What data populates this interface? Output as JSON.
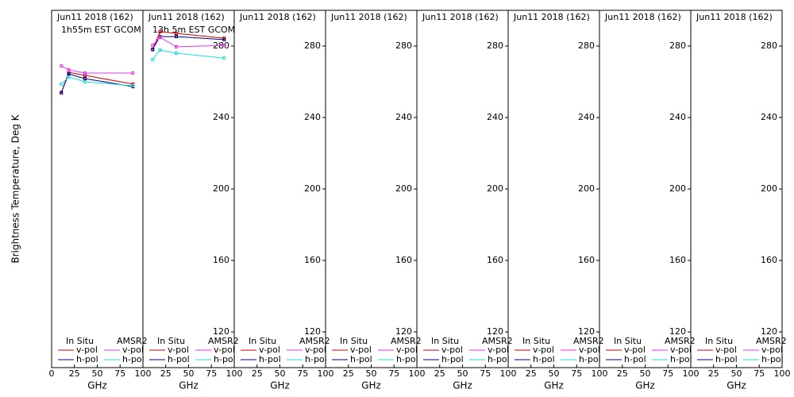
{
  "chart_data": [
    {
      "type": "line",
      "title": "Jun11 2018 (162)",
      "subtitle": "1h55m EST GCOM",
      "ylabel": "Brightness Temperature, Deg K",
      "xlabel": "GHz",
      "x": [
        10.65,
        18.7,
        36.5,
        89
      ],
      "xlim": [
        0,
        100
      ],
      "ylim": [
        100,
        300
      ],
      "xticks": [
        0,
        25,
        50,
        75,
        100
      ],
      "series": [
        {
          "group": "In Situ",
          "name": "v-pol",
          "color": "#cc0000",
          "values": [
            253.8,
            265.3,
            263.6,
            258.7
          ]
        },
        {
          "group": "In Situ",
          "name": "h-pol",
          "color": "#000080",
          "values": [
            254,
            264.4,
            261.8,
            257.3
          ]
        },
        {
          "group": "AMSR2",
          "name": "v-pol",
          "color": "#ee33ee",
          "values": [
            268.9,
            266.7,
            264.9,
            264.9
          ]
        },
        {
          "group": "AMSR2",
          "name": "h-pol",
          "color": "#22dddd",
          "values": [
            258.7,
            262.7,
            260,
            257.8
          ]
        }
      ]
    },
    {
      "type": "line",
      "title": "Jun11 2018 (162)",
      "subtitle": "13h 5m EST GCOM",
      "xlabel": "GHz",
      "x": [
        10.65,
        18.7,
        36.5,
        89
      ],
      "xlim": [
        0,
        100
      ],
      "ylim": [
        100,
        300
      ],
      "xticks": [
        25,
        50,
        75,
        100
      ],
      "yticks": [
        120,
        160,
        200,
        240,
        280
      ],
      "series": [
        {
          "group": "In Situ",
          "name": "v-pol",
          "color": "#cc0000",
          "values": [
            278,
            288,
            287.1,
            284.4
          ]
        },
        {
          "group": "In Situ",
          "name": "h-pol",
          "color": "#000080",
          "values": [
            278.2,
            285.3,
            285.3,
            283.6
          ]
        },
        {
          "group": "AMSR2",
          "name": "v-pol",
          "color": "#ee33ee",
          "values": [
            280.4,
            284.9,
            279.6,
            280.4
          ]
        },
        {
          "group": "AMSR2",
          "name": "h-pol",
          "color": "#22dddd",
          "values": [
            272.4,
            277.8,
            276,
            273.3
          ]
        }
      ]
    },
    {
      "type": "line",
      "title": "Jun11 2018 (162)",
      "xlabel": "GHz",
      "x": [],
      "xlim": [
        0,
        100
      ],
      "ylim": [
        100,
        300
      ],
      "xticks": [
        25,
        50,
        75,
        100
      ],
      "yticks": [
        120,
        160,
        200,
        240,
        280
      ],
      "series": [
        {
          "group": "In Situ",
          "name": "v-pol",
          "color": "#cc0000",
          "values": []
        },
        {
          "group": "In Situ",
          "name": "h-pol",
          "color": "#000080",
          "values": []
        },
        {
          "group": "AMSR2",
          "name": "v-pol",
          "color": "#ee33ee",
          "values": []
        },
        {
          "group": "AMSR2",
          "name": "h-pol",
          "color": "#22dddd",
          "values": []
        }
      ]
    },
    {
      "type": "line",
      "title": "Jun11 2018 (162)",
      "xlabel": "GHz",
      "x": [],
      "xlim": [
        0,
        100
      ],
      "ylim": [
        100,
        300
      ],
      "xticks": [
        25,
        50,
        75,
        100
      ],
      "yticks": [
        120,
        160,
        200,
        240,
        280
      ],
      "series": [
        {
          "group": "In Situ",
          "name": "v-pol",
          "color": "#cc0000",
          "values": []
        },
        {
          "group": "In Situ",
          "name": "h-pol",
          "color": "#000080",
          "values": []
        },
        {
          "group": "AMSR2",
          "name": "v-pol",
          "color": "#ee33ee",
          "values": []
        },
        {
          "group": "AMSR2",
          "name": "h-pol",
          "color": "#22dddd",
          "values": []
        }
      ]
    },
    {
      "type": "line",
      "title": "Jun11 2018 (162)",
      "xlabel": "GHz",
      "x": [],
      "xlim": [
        0,
        100
      ],
      "ylim": [
        100,
        300
      ],
      "xticks": [
        25,
        50,
        75,
        100
      ],
      "yticks": [
        120,
        160,
        200,
        240,
        280
      ],
      "series": [
        {
          "group": "In Situ",
          "name": "v-pol",
          "color": "#cc0000",
          "values": []
        },
        {
          "group": "In Situ",
          "name": "h-pol",
          "color": "#000080",
          "values": []
        },
        {
          "group": "AMSR2",
          "name": "v-pol",
          "color": "#ee33ee",
          "values": []
        },
        {
          "group": "AMSR2",
          "name": "h-pol",
          "color": "#22dddd",
          "values": []
        }
      ]
    },
    {
      "type": "line",
      "title": "Jun11 2018 (162)",
      "xlabel": "GHz",
      "x": [],
      "xlim": [
        0,
        100
      ],
      "ylim": [
        100,
        300
      ],
      "xticks": [
        25,
        50,
        75,
        100
      ],
      "yticks": [
        120,
        160,
        200,
        240,
        280
      ],
      "series": [
        {
          "group": "In Situ",
          "name": "v-pol",
          "color": "#cc0000",
          "values": []
        },
        {
          "group": "In Situ",
          "name": "h-pol",
          "color": "#000080",
          "values": []
        },
        {
          "group": "AMSR2",
          "name": "v-pol",
          "color": "#ee33ee",
          "values": []
        },
        {
          "group": "AMSR2",
          "name": "h-pol",
          "color": "#22dddd",
          "values": []
        }
      ]
    },
    {
      "type": "line",
      "title": "Jun11 2018 (162)",
      "xlabel": "GHz",
      "x": [],
      "xlim": [
        0,
        100
      ],
      "ylim": [
        100,
        300
      ],
      "xticks": [
        25,
        50,
        75,
        100
      ],
      "yticks": [
        120,
        160,
        200,
        240,
        280
      ],
      "series": [
        {
          "group": "In Situ",
          "name": "v-pol",
          "color": "#cc0000",
          "values": []
        },
        {
          "group": "In Situ",
          "name": "h-pol",
          "color": "#000080",
          "values": []
        },
        {
          "group": "AMSR2",
          "name": "v-pol",
          "color": "#ee33ee",
          "values": []
        },
        {
          "group": "AMSR2",
          "name": "h-pol",
          "color": "#22dddd",
          "values": []
        }
      ]
    },
    {
      "type": "line",
      "title": "Jun11 2018 (162)",
      "xlabel": "GHz",
      "x": [],
      "xlim": [
        0,
        100
      ],
      "ylim": [
        100,
        300
      ],
      "xticks": [
        25,
        50,
        75,
        100
      ],
      "yticks": [
        120,
        160,
        200,
        240,
        280
      ],
      "series": [
        {
          "group": "In Situ",
          "name": "v-pol",
          "color": "#cc0000",
          "values": []
        },
        {
          "group": "In Situ",
          "name": "h-pol",
          "color": "#000080",
          "values": []
        },
        {
          "group": "AMSR2",
          "name": "v-pol",
          "color": "#ee33ee",
          "values": []
        },
        {
          "group": "AMSR2",
          "name": "h-pol",
          "color": "#22dddd",
          "values": []
        }
      ]
    }
  ]
}
